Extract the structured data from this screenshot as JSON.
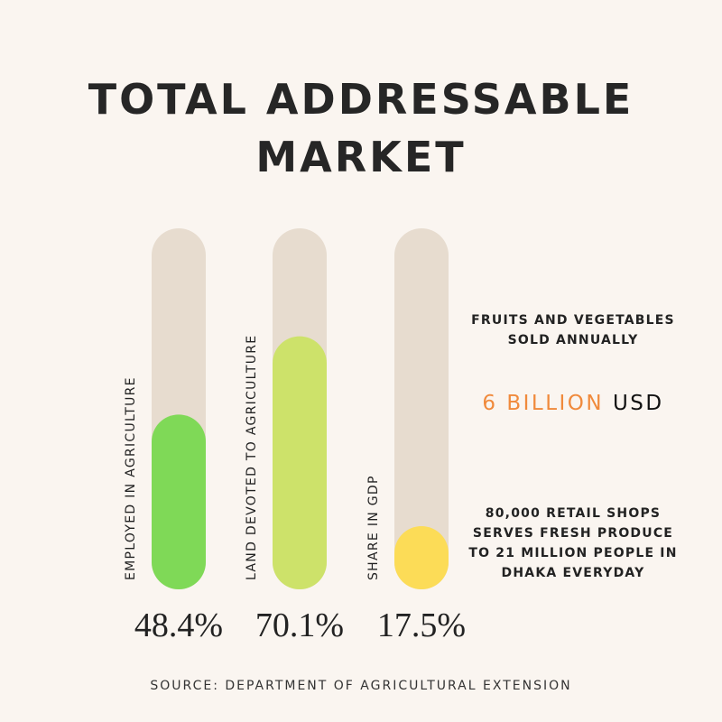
{
  "title": {
    "line1": "TOTAL ADDRESSABLE",
    "line2": "MARKET"
  },
  "chart_data": {
    "type": "bar",
    "orientation": "vertical",
    "categories": [
      "EMPLOYED IN AGRICULTURE",
      "LAND DEVOTED TO AGRICULTURE",
      "SHARE IN GDP"
    ],
    "values": [
      48.4,
      70.1,
      17.5
    ],
    "value_labels": [
      "48.4%",
      "70.1%",
      "17.5%"
    ],
    "unit": "%",
    "ylim": [
      0,
      100
    ],
    "grid": false,
    "colors": {
      "track": "#e7dccf",
      "bars": [
        "#7fd957",
        "#cde26a",
        "#fcdc57"
      ]
    }
  },
  "annotations": {
    "fruits_line1": "FRUITS AND VEGETABLES",
    "fruits_line2": "SOLD ANNUALLY",
    "amount": "6 BILLION",
    "amount_unit": "USD",
    "shops_line1": "80,000 RETAIL SHOPS",
    "shops_line2": "SERVES FRESH PRODUCE",
    "shops_line3": "TO 21 MILLION PEOPLE IN",
    "shops_line4": "DHAKA EVERYDAY"
  },
  "source": "SOURCE: DEPARTMENT OF AGRICULTURAL EXTENSION",
  "colors": {
    "background": "#faf5f0",
    "accent": "#f08a3c",
    "text": "#222222"
  }
}
